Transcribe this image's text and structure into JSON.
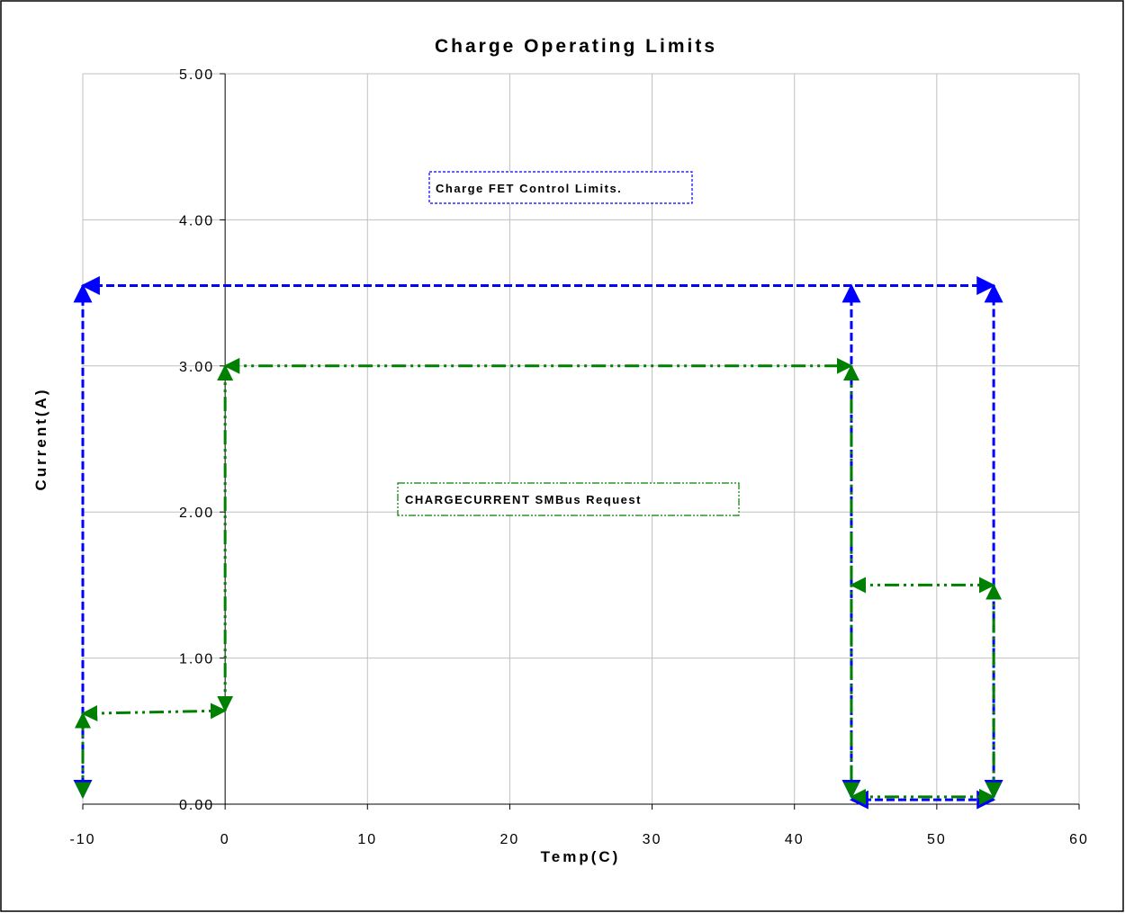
{
  "chart_data": {
    "type": "line",
    "title": "Charge Operating Limits",
    "xlabel": "Temp(C)",
    "ylabel": "Current(A)",
    "xlim": [
      -10,
      60
    ],
    "ylim": [
      0,
      5
    ],
    "x_ticks": [
      "-10",
      "0",
      "10",
      "20",
      "30",
      "40",
      "50",
      "60"
    ],
    "y_ticks": [
      "0.00",
      "1.00",
      "2.00",
      "3.00",
      "4.00",
      "5.00"
    ],
    "grid": true,
    "legend": "none",
    "colors": {
      "fet": "#0000ff",
      "smbus": "#008000"
    },
    "annotations": [
      {
        "text": "Charge FET Control Limits.",
        "color": "#0000ff"
      },
      {
        "text": "CHARGECURRENT SMBus Request",
        "color": "#008000"
      }
    ],
    "series": [
      {
        "color": "#0000ff",
        "segments": [
          {
            "x": [
              -10,
              -10
            ],
            "y": [
              0.05,
              3.55
            ]
          },
          {
            "x": [
              -10,
              54
            ],
            "y": [
              3.55,
              3.55
            ]
          },
          {
            "x": [
              54,
              54
            ],
            "y": [
              3.55,
              0.05
            ]
          },
          {
            "x": [
              44,
              44
            ],
            "y": [
              0.05,
              3.55
            ]
          },
          {
            "x": [
              44,
              54
            ],
            "y": [
              0.03,
              0.03
            ]
          }
        ]
      },
      {
        "color": "#008000",
        "segments": [
          {
            "x": [
              -10,
              0
            ],
            "y": [
              0.62,
              0.64
            ]
          },
          {
            "x": [
              -10,
              -10
            ],
            "y": [
              0.05,
              0.62
            ]
          },
          {
            "x": [
              0,
              0
            ],
            "y": [
              0.64,
              3.0
            ]
          },
          {
            "x": [
              0,
              44
            ],
            "y": [
              3.0,
              3.0
            ]
          },
          {
            "x": [
              44,
              44
            ],
            "y": [
              3.0,
              0.05
            ]
          },
          {
            "x": [
              44,
              54
            ],
            "y": [
              1.5,
              1.5
            ]
          },
          {
            "x": [
              54,
              54
            ],
            "y": [
              1.5,
              0.05
            ]
          },
          {
            "x": [
              44,
              54
            ],
            "y": [
              0.05,
              0.05
            ]
          }
        ]
      }
    ]
  }
}
